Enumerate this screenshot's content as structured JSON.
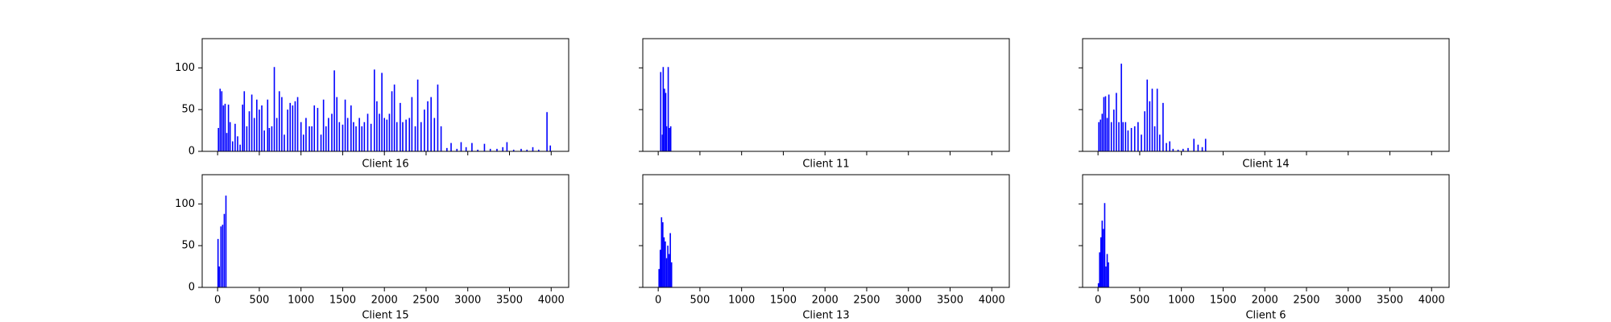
{
  "chart_data": [
    {
      "type": "bar",
      "xlabel": "Client 16",
      "color": "#0000ff",
      "xlim": [
        -185,
        4210
      ],
      "ylim": [
        0,
        135
      ],
      "xticks": [
        0,
        500,
        1000,
        1500,
        2000,
        2500,
        3000,
        3500,
        4000
      ],
      "yticks": [
        0,
        50,
        100
      ],
      "x_tick_labels": false,
      "y_tick_labels": true,
      "x": [
        10,
        30,
        50,
        70,
        90,
        110,
        130,
        150,
        180,
        210,
        240,
        270,
        300,
        320,
        350,
        380,
        410,
        440,
        470,
        500,
        530,
        560,
        600,
        620,
        650,
        680,
        710,
        740,
        770,
        800,
        840,
        870,
        900,
        930,
        960,
        1000,
        1030,
        1060,
        1100,
        1130,
        1160,
        1200,
        1240,
        1270,
        1300,
        1330,
        1370,
        1400,
        1430,
        1460,
        1500,
        1530,
        1560,
        1600,
        1630,
        1660,
        1700,
        1730,
        1760,
        1800,
        1840,
        1880,
        1910,
        1940,
        1970,
        2000,
        2030,
        2060,
        2090,
        2120,
        2150,
        2190,
        2220,
        2260,
        2300,
        2330,
        2370,
        2400,
        2440,
        2480,
        2520,
        2560,
        2600,
        2640,
        2680,
        2750,
        2800,
        2870,
        2920,
        2980,
        3050,
        3120,
        3200,
        3270,
        3350,
        3420,
        3470,
        3550,
        3640,
        3710,
        3780,
        3850,
        3950,
        3990
      ],
      "values": [
        28,
        75,
        72,
        55,
        57,
        22,
        56,
        35,
        12,
        33,
        18,
        8,
        56,
        72,
        30,
        48,
        68,
        40,
        62,
        50,
        55,
        25,
        62,
        28,
        30,
        101,
        40,
        72,
        65,
        20,
        50,
        58,
        55,
        60,
        65,
        35,
        20,
        40,
        30,
        30,
        55,
        52,
        20,
        62,
        30,
        40,
        45,
        97,
        65,
        35,
        32,
        62,
        40,
        55,
        35,
        30,
        40,
        30,
        35,
        45,
        33,
        98,
        60,
        45,
        94,
        40,
        38,
        45,
        72,
        80,
        35,
        58,
        35,
        38,
        40,
        65,
        30,
        86,
        35,
        50,
        60,
        65,
        40,
        80,
        30,
        4,
        10,
        3,
        11,
        5,
        10,
        2,
        9,
        3,
        3,
        5,
        11,
        2,
        3,
        2,
        5,
        2,
        47,
        7
      ]
    },
    {
      "type": "bar",
      "xlabel": "Client 11",
      "color": "#0000ff",
      "xlim": [
        -185,
        4210
      ],
      "ylim": [
        0,
        135
      ],
      "xticks": [
        0,
        500,
        1000,
        1500,
        2000,
        2500,
        3000,
        3500,
        4000
      ],
      "yticks": [
        0,
        50,
        100
      ],
      "x_tick_labels": false,
      "y_tick_labels": false,
      "x": [
        30,
        50,
        60,
        75,
        90,
        100,
        120,
        135,
        150
      ],
      "values": [
        95,
        20,
        101,
        75,
        70,
        30,
        101,
        28,
        30
      ]
    },
    {
      "type": "bar",
      "xlabel": "Client 14",
      "color": "#0000ff",
      "xlim": [
        -185,
        4210
      ],
      "ylim": [
        0,
        135
      ],
      "xticks": [
        0,
        500,
        1000,
        1500,
        2000,
        2500,
        3000,
        3500,
        4000
      ],
      "yticks": [
        0,
        50,
        100
      ],
      "x_tick_labels": false,
      "y_tick_labels": false,
      "x": [
        10,
        30,
        50,
        70,
        90,
        110,
        130,
        160,
        190,
        220,
        250,
        280,
        300,
        330,
        360,
        400,
        440,
        480,
        520,
        560,
        590,
        620,
        650,
        680,
        710,
        740,
        780,
        820,
        860,
        900,
        960,
        1020,
        1080,
        1150,
        1200,
        1250,
        1290
      ],
      "values": [
        35,
        38,
        45,
        65,
        66,
        40,
        68,
        35,
        50,
        70,
        35,
        105,
        35,
        35,
        25,
        28,
        30,
        35,
        20,
        48,
        86,
        60,
        75,
        30,
        75,
        20,
        58,
        10,
        12,
        3,
        2,
        3,
        4,
        15,
        8,
        5,
        15
      ]
    },
    {
      "type": "bar",
      "xlabel": "Client 15",
      "color": "#0000ff",
      "xlim": [
        -185,
        4210
      ],
      "ylim": [
        0,
        135
      ],
      "xticks": [
        0,
        500,
        1000,
        1500,
        2000,
        2500,
        3000,
        3500,
        4000
      ],
      "yticks": [
        0,
        50,
        100
      ],
      "x_tick_labels": true,
      "y_tick_labels": true,
      "x": [
        5,
        20,
        40,
        60,
        80,
        100
      ],
      "values": [
        58,
        25,
        73,
        75,
        88,
        110
      ]
    },
    {
      "type": "bar",
      "xlabel": "Client 13",
      "color": "#0000ff",
      "xlim": [
        -185,
        4210
      ],
      "ylim": [
        0,
        135
      ],
      "xticks": [
        0,
        500,
        1000,
        1500,
        2000,
        2500,
        3000,
        3500,
        4000
      ],
      "yticks": [
        0,
        50,
        100
      ],
      "x_tick_labels": true,
      "y_tick_labels": false,
      "x": [
        10,
        25,
        40,
        55,
        70,
        85,
        100,
        115,
        130,
        145,
        160
      ],
      "values": [
        22,
        45,
        84,
        78,
        60,
        55,
        35,
        50,
        40,
        65,
        30
      ]
    },
    {
      "type": "bar",
      "xlabel": "Client 6",
      "color": "#0000ff",
      "xlim": [
        -185,
        4210
      ],
      "ylim": [
        0,
        135
      ],
      "xticks": [
        0,
        500,
        1000,
        1500,
        2000,
        2500,
        3000,
        3500,
        4000
      ],
      "yticks": [
        0,
        50,
        100
      ],
      "x_tick_labels": true,
      "y_tick_labels": false,
      "x": [
        5,
        20,
        35,
        50,
        65,
        80,
        95,
        110,
        125
      ],
      "values": [
        5,
        42,
        60,
        80,
        70,
        101,
        25,
        40,
        30
      ]
    }
  ]
}
